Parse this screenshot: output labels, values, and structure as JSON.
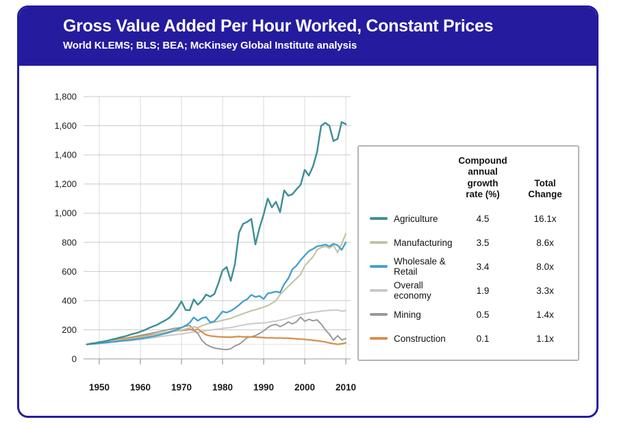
{
  "colors": {
    "header_bg": "#251B9E",
    "frame_border": "#251B9E",
    "grid": "#C9C9C9",
    "grid_vertical": "#DADADA",
    "baseline_line": "#E4E4E4",
    "axis": "#999999",
    "text": "#1A1A1A",
    "legend_border": "#B4B4B4"
  },
  "chart_data": {
    "type": "line",
    "title": "Gross Value Added Per Hour Worked, Constant Prices",
    "source": "World KLEMS; BLS; BEA; McKinsey Global Institute analysis",
    "x_start_year": 1947,
    "x_end_year": 2010,
    "x_ticks": [
      1950,
      1960,
      1970,
      1980,
      1990,
      2000,
      2010
    ],
    "y_ticks": [
      {
        "value": 0,
        "label": "0"
      },
      {
        "value": 200,
        "label": "200"
      },
      {
        "value": 400,
        "label": "400"
      },
      {
        "value": 600,
        "label": "600"
      },
      {
        "value": 800,
        "label": "800"
      },
      {
        "value": 1000,
        "label": "1,000"
      },
      {
        "value": 1200,
        "label": "1,200"
      },
      {
        "value": 1400,
        "label": "1,400"
      },
      {
        "value": 1600,
        "label": "1,600"
      },
      {
        "value": 1800,
        "label": "1,800"
      }
    ],
    "ylim": [
      0,
      1800
    ],
    "baseline": 100,
    "grid": true,
    "legend_position": "right",
    "legend_headers": {
      "cagr": "Compound\nannual\ngrowth\nrate (%)",
      "total": "Total\nChange"
    },
    "series": [
      {
        "name": "Agriculture",
        "color": "#3F8F96",
        "cagr": "4.5",
        "total_change": "16.1x",
        "values": [
          100,
          104,
          109,
          115,
          119,
          125,
          133,
          139,
          147,
          153,
          161,
          171,
          177,
          187,
          197,
          211,
          223,
          233,
          249,
          263,
          281,
          310,
          348,
          395,
          336,
          334,
          408,
          372,
          400,
          442,
          427,
          445,
          520,
          607,
          630,
          536,
          650,
          866,
          927,
          940,
          960,
          786,
          900,
          991,
          1100,
          1040,
          1078,
          1007,
          1156,
          1120,
          1130,
          1164,
          1195,
          1297,
          1258,
          1320,
          1420,
          1600,
          1620,
          1600,
          1495,
          1510,
          1625,
          1610
        ]
      },
      {
        "name": "Manufacturing",
        "color": "#C3C3A2",
        "cagr": "3.5",
        "total_change": "8.6x",
        "values": [
          100,
          103,
          106,
          112,
          115,
          118,
          122,
          125,
          130,
          132,
          135,
          138,
          144,
          148,
          153,
          158,
          165,
          170,
          176,
          180,
          184,
          189,
          193,
          198,
          205,
          213,
          220,
          215,
          228,
          238,
          246,
          252,
          258,
          265,
          272,
          278,
          290,
          300,
          310,
          320,
          330,
          338,
          346,
          356,
          365,
          382,
          400,
          442,
          470,
          497,
          525,
          552,
          580,
          638,
          670,
          700,
          748,
          765,
          772,
          760,
          780,
          730,
          790,
          860
        ]
      },
      {
        "name": "Wholesale & Retail",
        "color": "#46A1CC",
        "cagr": "3.4",
        "total_change": "8.0x",
        "values": [
          100,
          102,
          105,
          108,
          110,
          113,
          116,
          119,
          123,
          126,
          129,
          132,
          136,
          140,
          144,
          149,
          154,
          160,
          167,
          174,
          182,
          192,
          202,
          215,
          228,
          248,
          285,
          262,
          280,
          287,
          250,
          258,
          290,
          325,
          318,
          330,
          348,
          370,
          395,
          410,
          440,
          425,
          432,
          411,
          450,
          455,
          462,
          455,
          513,
          552,
          615,
          640,
          678,
          709,
          740,
          755,
          772,
          778,
          785,
          772,
          790,
          780,
          748,
          800
        ]
      },
      {
        "name": "Overall economy",
        "color": "#C9C9C9",
        "cagr": "1.9",
        "total_change": "3.3x",
        "values": [
          100,
          102,
          104,
          107,
          110,
          112,
          115,
          117,
          120,
          122,
          124,
          126,
          130,
          133,
          137,
          141,
          145,
          150,
          154,
          158,
          161,
          165,
          168,
          171,
          176,
          181,
          185,
          183,
          188,
          194,
          198,
          202,
          205,
          209,
          213,
          215,
          221,
          227,
          232,
          238,
          241,
          244,
          246,
          247,
          250,
          256,
          260,
          266,
          272,
          280,
          290,
          298,
          304,
          310,
          316,
          320,
          324,
          328,
          331,
          333,
          335,
          336,
          328,
          332
        ]
      },
      {
        "name": "Mining",
        "color": "#97999B",
        "cagr": "0.5",
        "total_change": "1.4x",
        "values": [
          100,
          103,
          107,
          112,
          117,
          121,
          126,
          131,
          137,
          141,
          145,
          150,
          156,
          161,
          167,
          172,
          178,
          184,
          190,
          196,
          202,
          208,
          212,
          216,
          224,
          230,
          200,
          174,
          127,
          99,
          85,
          75,
          70,
          66,
          64,
          70,
          89,
          100,
          122,
          146,
          152,
          160,
          175,
          192,
          215,
          231,
          237,
          222,
          235,
          254,
          240,
          255,
          286,
          258,
          272,
          262,
          268,
          240,
          200,
          170,
          128,
          160,
          130,
          140
        ]
      },
      {
        "name": "Construction",
        "color": "#D6914E",
        "cagr": "0.1",
        "total_change": "1.1x",
        "values": [
          100,
          106,
          110,
          115,
          120,
          124,
          128,
          132,
          137,
          140,
          143,
          147,
          151,
          154,
          158,
          162,
          167,
          171,
          176,
          181,
          186,
          191,
          194,
          196,
          198,
          202,
          196,
          205,
          185,
          165,
          158,
          155,
          152,
          151,
          150,
          149,
          152,
          154,
          151,
          152,
          151,
          150,
          148,
          146,
          144,
          145,
          143,
          144,
          142,
          143,
          140,
          138,
          136,
          134,
          131,
          128,
          125,
          121,
          116,
          110,
          105,
          100,
          104,
          110
        ]
      }
    ]
  }
}
